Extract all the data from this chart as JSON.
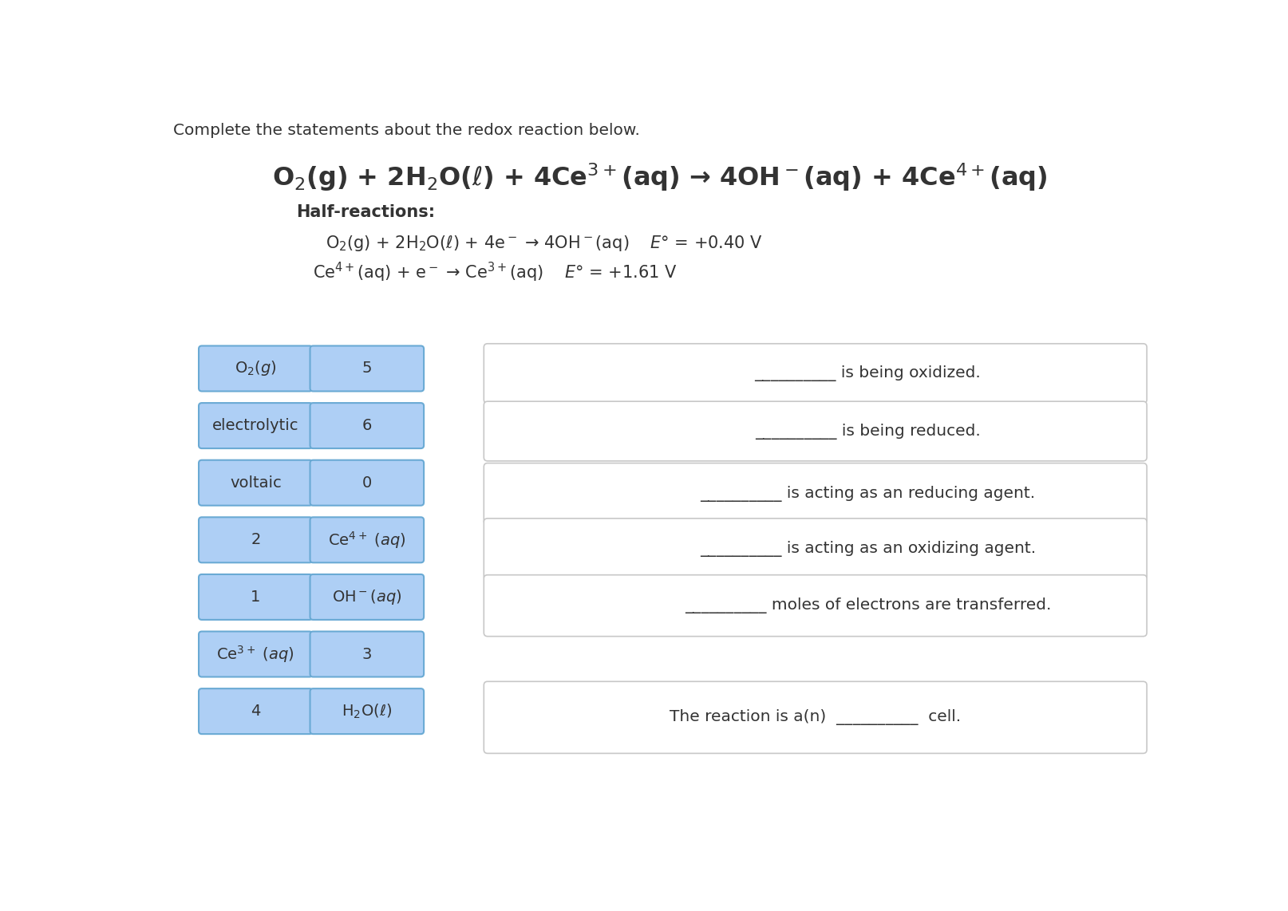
{
  "title": "Complete the statements about the redox reaction below.",
  "bg_color": "#ffffff",
  "text_color": "#333333",
  "box_fill": "#aecff5",
  "box_edge": "#6aaad4",
  "stmt_fill": "#ffffff",
  "stmt_edge": "#c8c8c8",
  "left_col1": [
    "O₂(ᵰ)",
    "electrolytic",
    "voltaic",
    "2",
    "1",
    "Ce³⁺ (aq)",
    "4"
  ],
  "left_col1_math": [
    true,
    false,
    false,
    false,
    false,
    true,
    false
  ],
  "left_col1_math_str": [
    "O$_2$($g$)",
    "",
    "",
    "",
    "",
    "Ce$^{3+}$ ($aq$)",
    ""
  ],
  "left_col2": [
    "5",
    "6",
    "0",
    "Ce⁴⁺ (aq)",
    "OH⁻(aq)",
    "3",
    "H₂O(ℓ)"
  ],
  "left_col2_math": [
    false,
    false,
    false,
    true,
    true,
    false,
    true
  ],
  "left_col2_math_str": [
    "",
    "",
    "",
    "Ce$^{4+}$ ($aq$)",
    "OH$^-$($aq$)",
    "",
    "H$_2$O($\\ell$)"
  ],
  "stmts": [
    "__________ is being oxidized.",
    "__________ is being reduced.",
    "__________ is acting as an reducing agent.",
    "__________ is acting as an oxidizing agent.",
    "__________ moles of electrons are transferred.",
    "The reaction is a(n)  __________  cell."
  ]
}
